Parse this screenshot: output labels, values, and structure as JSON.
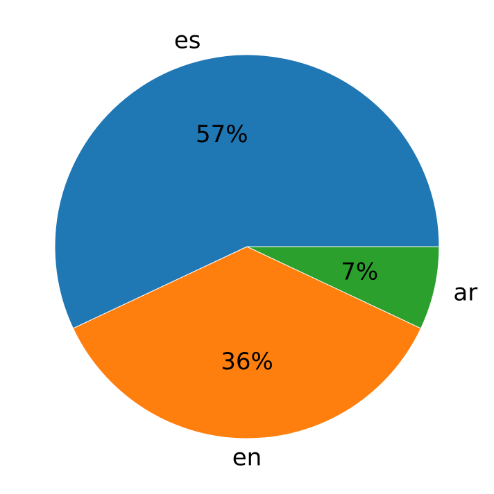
{
  "chart_data": {
    "type": "pie",
    "start_angle_deg": 0,
    "direction": "counterclockwise",
    "slices": [
      {
        "label": "es",
        "value": 57,
        "pct_label": "57%",
        "color": "#1f77b4"
      },
      {
        "label": "en",
        "value": 36,
        "pct_label": "36%",
        "color": "#ff7f0e"
      },
      {
        "label": "ar",
        "value": 7,
        "pct_label": "7%",
        "color": "#2ca02c"
      }
    ]
  }
}
